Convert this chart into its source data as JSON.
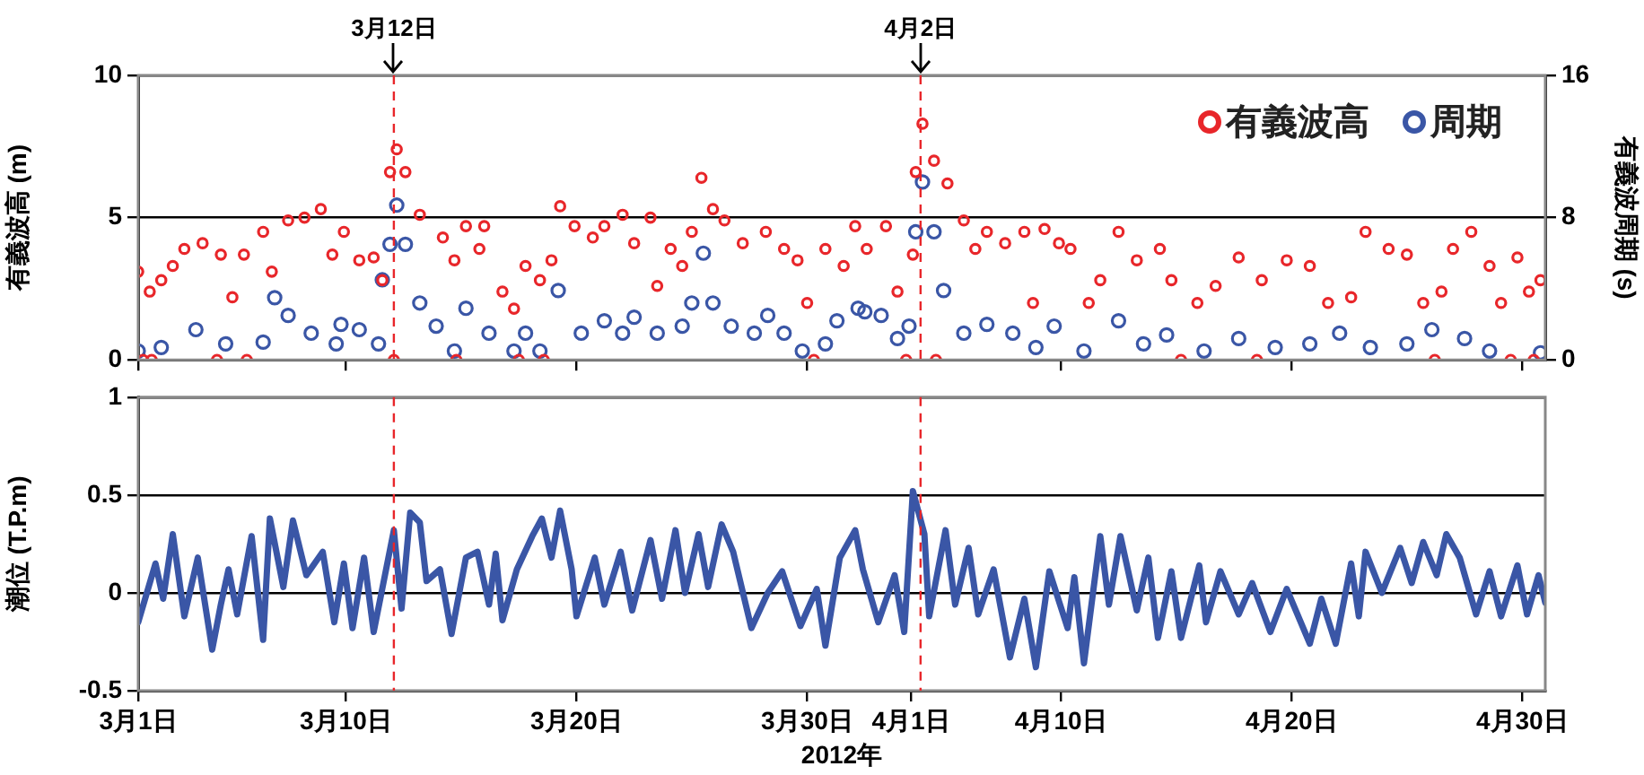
{
  "chart_data": [
    {
      "type": "scatter",
      "ylabel": "有義波高 (m)",
      "y2label": "有義波周期 (s)",
      "xlim": [
        "2012-03-01",
        "2012-05-01"
      ],
      "xticks": [
        {
          "value": "2012-03-01",
          "label": null
        },
        {
          "value": "2012-03-10",
          "label": null
        },
        {
          "value": "2012-03-20",
          "label": null
        },
        {
          "value": "2012-03-30",
          "label": null
        },
        {
          "value": "2012-04-10",
          "label": null
        },
        {
          "value": "2012-04-20",
          "label": null
        },
        {
          "value": "2012-04-30",
          "label": null
        }
      ],
      "ylim": [
        0,
        10
      ],
      "yticks": [
        0,
        5,
        10
      ],
      "y2lim": [
        0,
        16
      ],
      "y2ticks": [
        0,
        8,
        16
      ],
      "grid": "y",
      "legend": "top right",
      "marker": "circle",
      "tick_labels": "y",
      "ref_lines": [
        {
          "axis": "x",
          "value": "2012-03-12T02:00",
          "label": "3月12日",
          "color": "#e8262a",
          "line_style": "dashed"
        },
        {
          "axis": "x",
          "value": "2012-04-03T22:00",
          "label": "4月2日",
          "color": "#e8262a",
          "line_style": "dashed"
        }
      ],
      "series": [
        {
          "name": "有義波高",
          "color": "#e8262a",
          "x": [
            "2012-03-01T00:00",
            "2012-03-01T05:00",
            "2012-03-01T12:00",
            "2012-03-01T14:00",
            "2012-03-02T00:00",
            "2012-03-02T12:00",
            "2012-03-03T00:00",
            "2012-03-03T19:00",
            "2012-03-04T10:00",
            "2012-03-04T14:00",
            "2012-03-05T02:00",
            "2012-03-05T14:00",
            "2012-03-05T17:00",
            "2012-03-06T10:00",
            "2012-03-06T19:00",
            "2012-03-07T12:00",
            "2012-03-08T05:00",
            "2012-03-08T22:00",
            "2012-03-09T10:00",
            "2012-03-09T22:00",
            "2012-03-10T14:00",
            "2012-03-11T05:00",
            "2012-03-11T14:00",
            "2012-03-11T22:00",
            "2012-03-12T02:00",
            "2012-03-12T05:00",
            "2012-03-12T14:00",
            "2012-03-13T05:00",
            "2012-03-14T05:00",
            "2012-03-14T17:00",
            "2012-03-14T19:00",
            "2012-03-15T05:00",
            "2012-03-15T19:00",
            "2012-03-16T00:00",
            "2012-03-16T19:00",
            "2012-03-17T07:00",
            "2012-03-17T12:00",
            "2012-03-17T19:00",
            "2012-03-18T10:00",
            "2012-03-18T14:00",
            "2012-03-18T22:00",
            "2012-03-19T07:00",
            "2012-03-19T22:00",
            "2012-03-20T17:00",
            "2012-03-21T05:00",
            "2012-03-22T00:00",
            "2012-03-22T12:00",
            "2012-03-23T05:00",
            "2012-03-23T12:00",
            "2012-03-24T02:00",
            "2012-03-24T14:00",
            "2012-03-25T00:00",
            "2012-03-25T10:00",
            "2012-03-25T22:00",
            "2012-03-26T10:00",
            "2012-03-27T05:00",
            "2012-03-28T05:00",
            "2012-03-29T00:00",
            "2012-03-29T14:00",
            "2012-03-30T00:00",
            "2012-03-30T07:00",
            "2012-03-30T19:00",
            "2012-03-31T14:00",
            "2012-04-01T02:00",
            "2012-04-01T14:00",
            "2012-04-02T10:00",
            "2012-04-02T22:00",
            "2012-04-03T07:00",
            "2012-04-03T14:00",
            "2012-04-03T17:00",
            "2012-04-04T00:00",
            "2012-04-04T12:00",
            "2012-04-04T14:00",
            "2012-04-05T02:00",
            "2012-04-05T19:00",
            "2012-04-06T07:00",
            "2012-04-06T19:00",
            "2012-04-07T14:00",
            "2012-04-08T10:00",
            "2012-04-08T19:00",
            "2012-04-09T07:00",
            "2012-04-09T22:00",
            "2012-04-10T10:00",
            "2012-04-11T05:00",
            "2012-04-11T17:00",
            "2012-04-12T12:00",
            "2012-04-13T07:00",
            "2012-04-14T07:00",
            "2012-04-14T19:00",
            "2012-04-15T05:00",
            "2012-04-15T22:00",
            "2012-04-16T17:00",
            "2012-04-17T17:00",
            "2012-04-18T12:00",
            "2012-04-18T17:00",
            "2012-04-19T19:00",
            "2012-04-20T19:00",
            "2012-04-21T14:00",
            "2012-04-22T14:00",
            "2012-04-23T05:00",
            "2012-04-24T05:00",
            "2012-04-25T00:00",
            "2012-04-25T17:00",
            "2012-04-26T05:00",
            "2012-04-26T12:00",
            "2012-04-27T00:00",
            "2012-04-27T19:00",
            "2012-04-28T14:00",
            "2012-04-29T02:00",
            "2012-04-29T12:00",
            "2012-04-29T19:00",
            "2012-04-30T07:00",
            "2012-04-30T12:00",
            "2012-04-30T19:00"
          ],
          "values": [
            3.1,
            0,
            2.4,
            0,
            2.8,
            3.3,
            3.9,
            4.1,
            0,
            3.7,
            2.2,
            3.7,
            0,
            4.5,
            3.1,
            4.9,
            5.0,
            5.3,
            3.7,
            4.5,
            3.5,
            3.6,
            2.8,
            6.6,
            0,
            7.4,
            6.6,
            5.1,
            4.3,
            3.5,
            0,
            4.7,
            3.9,
            4.7,
            2.4,
            1.8,
            0,
            3.3,
            2.8,
            0,
            3.5,
            5.4,
            4.7,
            4.3,
            4.7,
            5.1,
            4.1,
            5.0,
            2.6,
            3.9,
            3.3,
            4.5,
            6.4,
            5.3,
            4.9,
            4.1,
            4.5,
            3.9,
            3.5,
            2.0,
            0,
            3.9,
            3.3,
            4.7,
            3.9,
            4.7,
            2.4,
            0,
            3.7,
            6.6,
            8.3,
            7.0,
            0,
            6.2,
            4.9,
            3.9,
            4.5,
            4.1,
            4.5,
            2.0,
            4.6,
            4.1,
            3.9,
            2.0,
            2.8,
            4.5,
            3.5,
            3.9,
            2.8,
            0,
            2.0,
            2.6,
            3.6,
            0,
            2.8,
            3.5,
            3.3,
            2.0,
            2.2,
            4.5,
            3.9,
            3.7,
            2.0,
            0,
            2.4,
            3.9,
            4.5,
            3.3,
            2.0,
            0,
            3.6,
            2.4,
            0,
            2.8
          ]
        },
        {
          "name": "周期",
          "color": "#3a56a6",
          "axis": "y2",
          "x": [
            "2012-03-01T00:00",
            "2012-03-02T00:00",
            "2012-03-03T12:00",
            "2012-03-04T19:00",
            "2012-03-06T10:00",
            "2012-03-06T22:00",
            "2012-03-07T12:00",
            "2012-03-08T12:00",
            "2012-03-09T14:00",
            "2012-03-09T19:00",
            "2012-03-10T14:00",
            "2012-03-11T10:00",
            "2012-03-11T14:00",
            "2012-03-11T22:00",
            "2012-03-12T05:00",
            "2012-03-12T14:00",
            "2012-03-13T05:00",
            "2012-03-13T22:00",
            "2012-03-14T17:00",
            "2012-03-15T05:00",
            "2012-03-16T05:00",
            "2012-03-17T07:00",
            "2012-03-17T19:00",
            "2012-03-18T10:00",
            "2012-03-19T05:00",
            "2012-03-20T05:00",
            "2012-03-21T05:00",
            "2012-03-22T00:00",
            "2012-03-22T12:00",
            "2012-03-23T12:00",
            "2012-03-24T14:00",
            "2012-03-25T00:00",
            "2012-03-25T12:00",
            "2012-03-25T22:00",
            "2012-03-26T17:00",
            "2012-03-27T17:00",
            "2012-03-28T07:00",
            "2012-03-29T00:00",
            "2012-03-29T19:00",
            "2012-03-30T19:00",
            "2012-03-31T07:00",
            "2012-04-01T05:00",
            "2012-04-01T12:00",
            "2012-04-02T05:00",
            "2012-04-02T22:00",
            "2012-04-03T10:00",
            "2012-04-03T17:00",
            "2012-04-04T00:00",
            "2012-04-04T12:00",
            "2012-04-04T22:00",
            "2012-04-05T19:00",
            "2012-04-06T19:00",
            "2012-04-07T22:00",
            "2012-04-08T22:00",
            "2012-04-09T17:00",
            "2012-04-11T00:00",
            "2012-04-12T12:00",
            "2012-04-13T14:00",
            "2012-04-14T14:00",
            "2012-04-16T05:00",
            "2012-04-17T17:00",
            "2012-04-19T07:00",
            "2012-04-20T19:00",
            "2012-04-22T02:00",
            "2012-04-23T10:00",
            "2012-04-25T00:00",
            "2012-04-26T02:00",
            "2012-04-27T12:00",
            "2012-04-28T14:00",
            "2012-04-30T19:00"
          ],
          "values": [
            0.5,
            0.7,
            1.7,
            0.9,
            1.0,
            3.5,
            2.5,
            1.5,
            0.9,
            2.0,
            1.7,
            0.9,
            4.5,
            6.5,
            8.7,
            6.5,
            3.2,
            1.9,
            0.5,
            2.9,
            1.5,
            0.5,
            1.5,
            0.5,
            3.9,
            1.5,
            2.2,
            1.5,
            2.4,
            1.5,
            1.9,
            3.2,
            6.0,
            3.2,
            1.9,
            1.5,
            2.5,
            1.5,
            0.5,
            0.9,
            2.2,
            2.9,
            2.7,
            2.5,
            1.2,
            1.9,
            7.2,
            10.0,
            7.2,
            3.9,
            1.5,
            2.0,
            1.5,
            0.7,
            1.9,
            0.5,
            2.2,
            0.9,
            1.4,
            0.5,
            1.2,
            0.7,
            0.9,
            1.5,
            0.7,
            0.9,
            1.7,
            1.2,
            0.5,
            0.4
          ]
        }
      ]
    },
    {
      "type": "line",
      "ylabel": "潮位 (T.P.m)",
      "xlabel": "2012年",
      "xlim": [
        "2012-03-01",
        "2012-05-01"
      ],
      "xticks": [
        {
          "value": "2012-03-01",
          "label": "3月1日"
        },
        {
          "value": "2012-03-10",
          "label": "3月10日"
        },
        {
          "value": "2012-03-20",
          "label": "3月20日"
        },
        {
          "value": "2012-03-30",
          "label": "3月30日"
        },
        {
          "value": "2012-04-03T12:00",
          "label": "4月1日"
        },
        {
          "value": "2012-04-10",
          "label": "4月10日"
        },
        {
          "value": "2012-04-20",
          "label": "4月20日"
        },
        {
          "value": "2012-04-30",
          "label": "4月30日"
        }
      ],
      "ylim": [
        -0.5,
        1
      ],
      "yticks": [
        -0.5,
        0,
        0.5,
        1
      ],
      "grid": "y",
      "ref_lines": [
        {
          "axis": "x",
          "value": "2012-03-12T02:00",
          "color": "#e8262a",
          "line_style": "dashed"
        },
        {
          "axis": "x",
          "value": "2012-04-03T22:00",
          "color": "#e8262a",
          "line_style": "dashed"
        }
      ],
      "series": [
        {
          "color": "#3a56a6",
          "x": [
            "2012-03-01T00:00",
            "2012-03-01T18:00",
            "2012-03-02T02:00",
            "2012-03-02T12:00",
            "2012-03-03T00:00",
            "2012-03-03T14:00",
            "2012-03-04T05:00",
            "2012-03-04T14:00",
            "2012-03-04T22:00",
            "2012-03-05T07:00",
            "2012-03-05T22:00",
            "2012-03-06T10:00",
            "2012-03-06T17:00",
            "2012-03-07T07:00",
            "2012-03-07T17:00",
            "2012-03-08T07:00",
            "2012-03-09T00:00",
            "2012-03-09T12:00",
            "2012-03-09T22:00",
            "2012-03-10T07:00",
            "2012-03-10T19:00",
            "2012-03-11T05:00",
            "2012-03-12T02:00",
            "2012-03-12T10:00",
            "2012-03-12T19:00",
            "2012-03-13T05:00",
            "2012-03-13T12:00",
            "2012-03-14T02:00",
            "2012-03-14T14:00",
            "2012-03-15T05:00",
            "2012-03-15T17:00",
            "2012-03-16T05:00",
            "2012-03-16T12:00",
            "2012-03-16T19:00",
            "2012-03-17T10:00",
            "2012-03-18T02:00",
            "2012-03-18T12:00",
            "2012-03-18T22:00",
            "2012-03-19T07:00",
            "2012-03-19T19:00",
            "2012-03-20T00:00",
            "2012-03-20T19:00",
            "2012-03-21T05:00",
            "2012-03-21T22:00",
            "2012-03-22T10:00",
            "2012-03-23T05:00",
            "2012-03-23T17:00",
            "2012-03-24T07:00",
            "2012-03-24T17:00",
            "2012-03-25T07:00",
            "2012-03-25T17:00",
            "2012-03-26T07:00",
            "2012-03-26T19:00",
            "2012-03-27T14:00",
            "2012-03-28T07:00",
            "2012-03-28T22:00",
            "2012-03-29T17:00",
            "2012-03-30T10:00",
            "2012-03-30T19:00",
            "2012-03-31T10:00",
            "2012-04-01T02:00",
            "2012-04-01T10:00",
            "2012-04-02T02:00",
            "2012-04-02T19:00",
            "2012-04-03T05:00",
            "2012-04-03T14:00",
            "2012-04-04T02:00",
            "2012-04-04T07:00",
            "2012-04-05T00:00",
            "2012-04-05T10:00",
            "2012-04-06T00:00",
            "2012-04-06T10:00",
            "2012-04-07T02:00",
            "2012-04-07T19:00",
            "2012-04-08T10:00",
            "2012-04-08T22:00",
            "2012-04-09T12:00",
            "2012-04-10T07:00",
            "2012-04-10T14:00",
            "2012-04-11T00:00",
            "2012-04-11T17:00",
            "2012-04-12T02:00",
            "2012-04-12T14:00",
            "2012-04-13T07:00",
            "2012-04-13T19:00",
            "2012-04-14T05:00",
            "2012-04-14T19:00",
            "2012-04-15T05:00",
            "2012-04-16T00:00",
            "2012-04-16T07:00",
            "2012-04-16T22:00",
            "2012-04-17T17:00",
            "2012-04-18T07:00",
            "2012-04-19T02:00",
            "2012-04-19T19:00",
            "2012-04-20T19:00",
            "2012-04-21T07:00",
            "2012-04-21T22:00",
            "2012-04-22T14:00",
            "2012-04-22T22:00",
            "2012-04-23T05:00",
            "2012-04-23T22:00",
            "2012-04-24T17:00",
            "2012-04-25T05:00",
            "2012-04-25T17:00",
            "2012-04-26T07:00",
            "2012-04-26T17:00",
            "2012-04-27T07:00",
            "2012-04-28T00:00",
            "2012-04-28T14:00",
            "2012-04-29T02:00",
            "2012-04-29T19:00",
            "2012-04-30T05:00",
            "2012-04-30T17:00",
            "2012-05-01T00:00"
          ],
          "values": [
            -0.15,
            0.15,
            -0.03,
            0.3,
            -0.12,
            0.18,
            -0.29,
            -0.06,
            0.12,
            -0.11,
            0.29,
            -0.24,
            0.38,
            0.03,
            0.37,
            0.09,
            0.21,
            -0.15,
            0.15,
            -0.18,
            0.18,
            -0.2,
            0.32,
            -0.08,
            0.41,
            0.36,
            0.06,
            0.12,
            -0.21,
            0.18,
            0.21,
            -0.06,
            0.2,
            -0.14,
            0.12,
            0.29,
            0.38,
            0.18,
            0.42,
            0.12,
            -0.12,
            0.18,
            -0.06,
            0.21,
            -0.09,
            0.27,
            -0.03,
            0.32,
            0.0,
            0.3,
            0.03,
            0.35,
            0.21,
            -0.18,
            0.0,
            0.11,
            -0.17,
            0.02,
            -0.27,
            0.18,
            0.32,
            0.12,
            -0.15,
            0.09,
            -0.2,
            0.52,
            0.3,
            -0.12,
            0.32,
            -0.06,
            0.23,
            -0.11,
            0.12,
            -0.33,
            -0.03,
            -0.38,
            0.11,
            -0.18,
            0.08,
            -0.36,
            0.29,
            -0.06,
            0.29,
            -0.09,
            0.18,
            -0.23,
            0.11,
            -0.23,
            0.14,
            -0.15,
            0.11,
            -0.11,
            0.05,
            -0.2,
            0.02,
            -0.26,
            -0.03,
            -0.26,
            0.15,
            -0.12,
            0.21,
            0.0,
            0.23,
            0.05,
            0.26,
            0.09,
            0.3,
            0.18,
            -0.11,
            0.11,
            -0.12,
            0.14,
            -0.11,
            0.09,
            -0.05
          ]
        }
      ]
    }
  ]
}
